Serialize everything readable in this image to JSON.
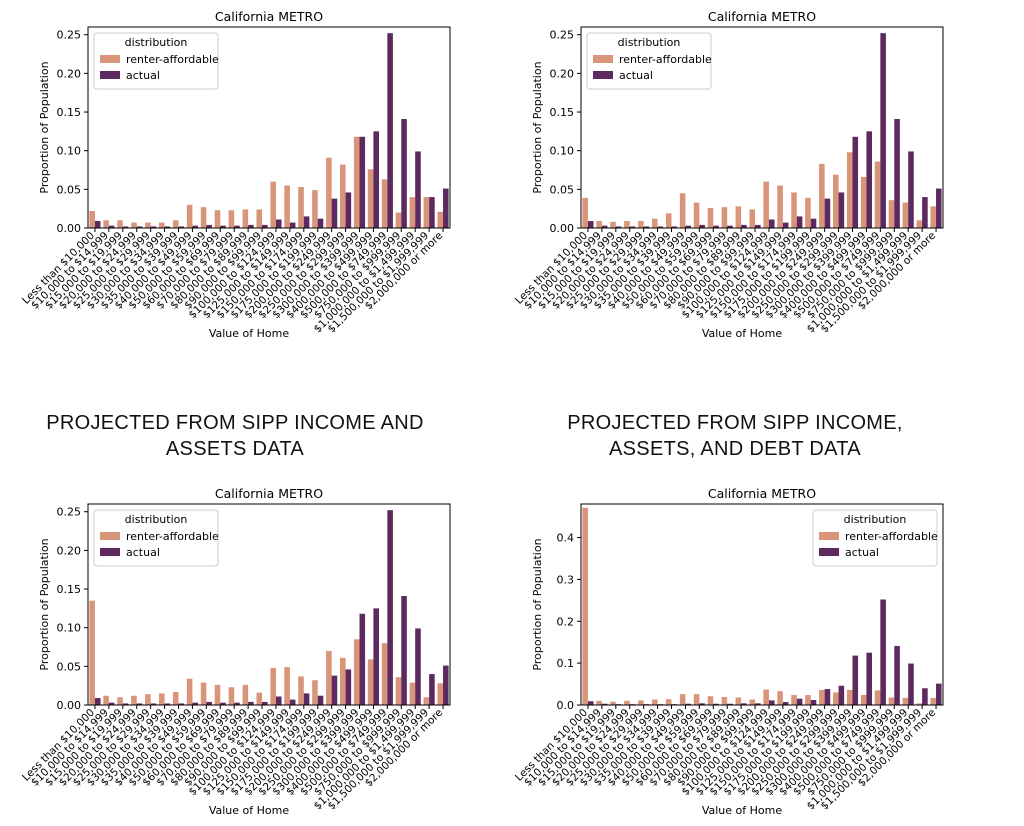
{
  "section_headings": [
    {
      "text": "PROJECTED FROM SIPP INCOME AND ASSETS DATA"
    },
    {
      "text": "PROJECTED FROM SIPP INCOME, ASSETS, AND DEBT DATA"
    }
  ],
  "colors": {
    "renter_affordable": "#d9957a",
    "actual": "#5c2a5e",
    "axis": "#000000"
  },
  "chart_data": [
    {
      "type": "bar",
      "title": "California METRO",
      "xlabel": "Value of Home",
      "ylabel": "Proportion of Population",
      "ylim": [
        0,
        0.26
      ],
      "yticks": [
        "0.00",
        "0.05",
        "0.10",
        "0.15",
        "0.20",
        "0.25"
      ],
      "legend": {
        "title": "distribution",
        "placement": "top-left"
      },
      "categories": [
        "Less than $10,000",
        "$10,000 to $14,999",
        "$15,000 to $19,999",
        "$20,000 to $24,999",
        "$25,000 to $29,999",
        "$30,000 to $34,999",
        "$35,000 to $39,999",
        "$40,000 to $49,999",
        "$50,000 to $59,999",
        "$60,000 to $69,999",
        "$70,000 to $79,999",
        "$80,000 to $89,999",
        "$90,000 to $99,999",
        "$100,000 to $124,999",
        "$125,000 to $149,999",
        "$150,000 to $174,999",
        "$175,000 to $199,999",
        "$200,000 to $249,999",
        "$250,000 to $299,999",
        "$300,000 to $399,999",
        "$400,000 to $499,999",
        "$500,000 to $749,999",
        "$750,000 to $999,999",
        "$1,000,000 to $1,499,999",
        "$1,500,000 to $1,999,999",
        "$2,000,000 or more"
      ],
      "series": [
        {
          "name": "renter-affordable",
          "values": [
            0.022,
            0.01,
            0.01,
            0.007,
            0.007,
            0.007,
            0.01,
            0.03,
            0.027,
            0.023,
            0.023,
            0.024,
            0.024,
            0.06,
            0.055,
            0.053,
            0.049,
            0.091,
            0.082,
            0.118,
            0.076,
            0.063,
            0.02,
            0.04,
            0.04,
            0.021
          ]
        },
        {
          "name": "actual",
          "values": [
            0.009,
            0.003,
            0.002,
            0.002,
            0.002,
            0.002,
            0.002,
            0.003,
            0.004,
            0.003,
            0.003,
            0.004,
            0.004,
            0.011,
            0.007,
            0.015,
            0.012,
            0.038,
            0.046,
            0.118,
            0.125,
            0.252,
            0.141,
            0.099,
            0.04,
            0.051
          ]
        }
      ]
    },
    {
      "type": "bar",
      "title": "California METRO",
      "xlabel": "Value of Home",
      "ylabel": "Proportion of Population",
      "ylim": [
        0,
        0.26
      ],
      "yticks": [
        "0.00",
        "0.05",
        "0.10",
        "0.15",
        "0.20",
        "0.25"
      ],
      "legend": {
        "title": "distribution",
        "placement": "top-left"
      },
      "categories": [
        "Less than $10,000",
        "$10,000 to $14,999",
        "$15,000 to $19,999",
        "$20,000 to $24,999",
        "$25,000 to $29,999",
        "$30,000 to $34,999",
        "$35,000 to $39,999",
        "$40,000 to $49,999",
        "$50,000 to $59,999",
        "$60,000 to $69,999",
        "$70,000 to $79,999",
        "$80,000 to $89,999",
        "$90,000 to $99,999",
        "$100,000 to $124,999",
        "$125,000 to $149,999",
        "$150,000 to $174,999",
        "$175,000 to $199,999",
        "$200,000 to $249,999",
        "$250,000 to $299,999",
        "$300,000 to $399,999",
        "$400,000 to $499,999",
        "$500,000 to $749,999",
        "$750,000 to $999,999",
        "$1,000,000 to $1,499,999",
        "$1,500,000 to $1,999,999",
        "$2,000,000 or more"
      ],
      "series": [
        {
          "name": "renter-affordable",
          "values": [
            0.039,
            0.009,
            0.008,
            0.009,
            0.009,
            0.012,
            0.019,
            0.045,
            0.033,
            0.026,
            0.027,
            0.028,
            0.024,
            0.06,
            0.055,
            0.046,
            0.039,
            0.083,
            0.069,
            0.098,
            0.066,
            0.086,
            0.036,
            0.033,
            0.01,
            0.028
          ]
        },
        {
          "name": "actual",
          "values": [
            0.009,
            0.003,
            0.002,
            0.002,
            0.002,
            0.002,
            0.002,
            0.003,
            0.004,
            0.003,
            0.003,
            0.004,
            0.004,
            0.011,
            0.007,
            0.015,
            0.012,
            0.038,
            0.046,
            0.118,
            0.125,
            0.252,
            0.141,
            0.099,
            0.04,
            0.051
          ]
        }
      ]
    },
    {
      "type": "bar",
      "title": "California METRO",
      "xlabel": "Value of Home",
      "ylabel": "Proportion of Population",
      "ylim": [
        0,
        0.26
      ],
      "yticks": [
        "0.00",
        "0.05",
        "0.10",
        "0.15",
        "0.20",
        "0.25"
      ],
      "legend": {
        "title": "distribution",
        "placement": "top-left"
      },
      "categories": [
        "Less than $10,000",
        "$10,000 to $14,999",
        "$15,000 to $19,999",
        "$20,000 to $24,999",
        "$25,000 to $29,999",
        "$30,000 to $34,999",
        "$35,000 to $39,999",
        "$40,000 to $49,999",
        "$50,000 to $59,999",
        "$60,000 to $69,999",
        "$70,000 to $79,999",
        "$80,000 to $89,999",
        "$90,000 to $99,999",
        "$100,000 to $124,999",
        "$125,000 to $149,999",
        "$150,000 to $174,999",
        "$175,000 to $199,999",
        "$200,000 to $249,999",
        "$250,000 to $299,999",
        "$300,000 to $399,999",
        "$400,000 to $499,999",
        "$500,000 to $749,999",
        "$750,000 to $999,999",
        "$1,000,000 to $1,499,999",
        "$1,500,000 to $1,999,999",
        "$2,000,000 or more"
      ],
      "series": [
        {
          "name": "renter-affordable",
          "values": [
            0.135,
            0.012,
            0.01,
            0.012,
            0.014,
            0.015,
            0.017,
            0.034,
            0.029,
            0.026,
            0.023,
            0.026,
            0.016,
            0.048,
            0.049,
            0.037,
            0.032,
            0.07,
            0.061,
            0.085,
            0.059,
            0.08,
            0.036,
            0.029,
            0.01,
            0.028
          ]
        },
        {
          "name": "actual",
          "values": [
            0.009,
            0.003,
            0.002,
            0.002,
            0.002,
            0.002,
            0.002,
            0.003,
            0.004,
            0.003,
            0.003,
            0.004,
            0.004,
            0.011,
            0.007,
            0.015,
            0.012,
            0.038,
            0.046,
            0.118,
            0.125,
            0.252,
            0.141,
            0.099,
            0.04,
            0.051
          ]
        }
      ]
    },
    {
      "type": "bar",
      "title": "California METRO",
      "xlabel": "Value of Home",
      "ylabel": "Proportion of Population",
      "ylim": [
        0,
        0.48
      ],
      "yticks": [
        "0.0",
        "0.1",
        "0.2",
        "0.3",
        "0.4"
      ],
      "legend": {
        "title": "distribution",
        "placement": "top-right"
      },
      "categories": [
        "Less than $10,000",
        "$10,000 to $14,999",
        "$15,000 to $19,999",
        "$20,000 to $24,999",
        "$25,000 to $29,999",
        "$30,000 to $34,999",
        "$35,000 to $39,999",
        "$40,000 to $49,999",
        "$50,000 to $59,999",
        "$60,000 to $69,999",
        "$70,000 to $79,999",
        "$80,000 to $89,999",
        "$90,000 to $99,999",
        "$100,000 to $124,999",
        "$125,000 to $149,999",
        "$150,000 to $174,999",
        "$175,000 to $199,999",
        "$200,000 to $249,999",
        "$250,000 to $299,999",
        "$300,000 to $399,999",
        "$400,000 to $499,999",
        "$500,000 to $749,999",
        "$750,000 to $999,999",
        "$1,000,000 to $1,499,999",
        "$1,500,000 to $1,999,999",
        "$2,000,000 or more"
      ],
      "series": [
        {
          "name": "renter-affordable",
          "values": [
            0.471,
            0.01,
            0.008,
            0.01,
            0.011,
            0.013,
            0.014,
            0.026,
            0.026,
            0.021,
            0.019,
            0.018,
            0.013,
            0.037,
            0.033,
            0.024,
            0.024,
            0.036,
            0.03,
            0.036,
            0.024,
            0.035,
            0.018,
            0.017,
            0.004,
            0.017
          ]
        },
        {
          "name": "actual",
          "values": [
            0.009,
            0.003,
            0.002,
            0.002,
            0.002,
            0.002,
            0.002,
            0.003,
            0.004,
            0.003,
            0.003,
            0.004,
            0.004,
            0.011,
            0.007,
            0.015,
            0.012,
            0.038,
            0.046,
            0.118,
            0.125,
            0.252,
            0.141,
            0.099,
            0.04,
            0.051
          ]
        }
      ]
    }
  ]
}
